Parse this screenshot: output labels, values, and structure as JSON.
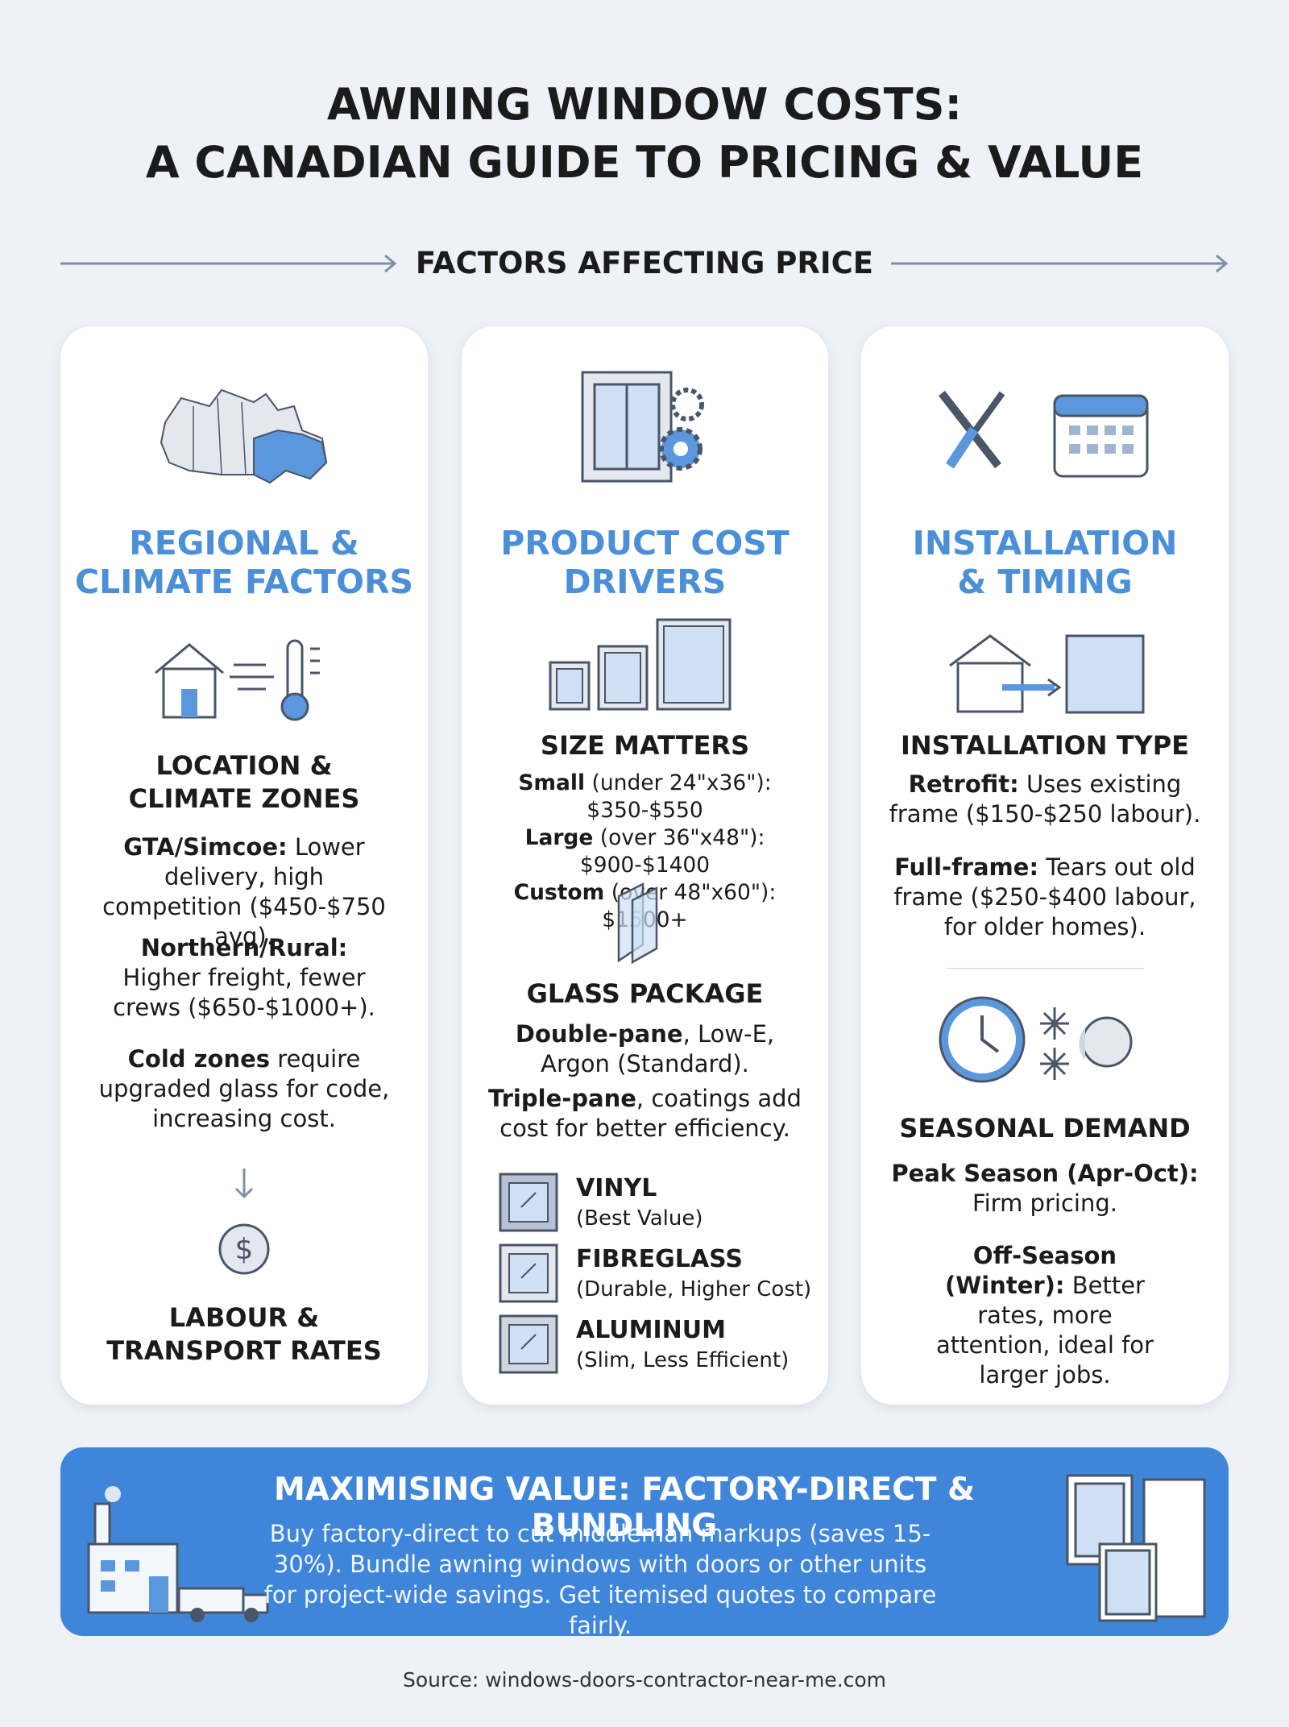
{
  "header": {
    "title_lines": [
      "AWNING WINDOW COSTS:",
      "A CANADIAN GUIDE TO PRICING & VALUE"
    ],
    "subtitle": "FACTORS AFFECTING PRICE"
  },
  "regional": {
    "heading_lines": [
      "REGIONAL &",
      "CLIMATE FACTORS"
    ],
    "location": {
      "heading_lines": [
        "LOCATION &",
        "CLIMATE ZONES"
      ],
      "items": [
        {
          "lead": "GTA/Simcoe:",
          "text": "Lower delivery, high competition ($450-$750 avg)."
        },
        {
          "lead": "Northern/Rural:",
          "text": "Higher freight, fewer crews ($650-$1000+)."
        },
        {
          "lead": "Cold zones",
          "text": "require upgraded glass for code, increasing cost."
        }
      ]
    },
    "labour_lines": [
      "LABOUR &",
      "TRANSPORT RATES"
    ]
  },
  "product": {
    "heading_lines": [
      "PRODUCT COST",
      "DRIVERS"
    ],
    "size": {
      "heading": "SIZE MATTERS",
      "items": [
        {
          "lead": "Small",
          "text": "(under 24\"x36\"): $350-$550"
        },
        {
          "lead": "Large",
          "text": "(over 36\"x48\"): $900-$1400"
        },
        {
          "lead": "Custom",
          "text": "(over 48\"x60\"): $1500+"
        }
      ]
    },
    "glass": {
      "heading": "GLASS PACKAGE",
      "items": [
        {
          "lead": "Double-pane",
          "text": ", Low-E, Argon (Standard)."
        },
        {
          "lead": "Triple-pane",
          "text": ", coatings add cost for better efficiency."
        }
      ]
    },
    "materials": [
      {
        "name": "VINYL",
        "note": "(Best Value)"
      },
      {
        "name": "FIBREGLASS",
        "note": "(Durable, Higher Cost)"
      },
      {
        "name": "ALUMINUM",
        "note": "(Slim, Less Efficient)"
      }
    ]
  },
  "installation": {
    "heading_lines": [
      "INSTALLATION",
      "& TIMING"
    ],
    "type": {
      "heading": "INSTALLATION TYPE",
      "items": [
        {
          "lead": "Retrofit:",
          "text": "Uses existing frame ($150-$250 labour)."
        },
        {
          "lead": "Full-frame:",
          "text": "Tears out old frame ($250-$400 labour, for older homes)."
        }
      ]
    },
    "seasonal": {
      "heading": "SEASONAL DEMAND",
      "items": [
        {
          "lead": "Peak Season (Apr-Oct):",
          "text": "Firm pricing."
        },
        {
          "lead": "Off-Season (Winter):",
          "text": "Better rates, more attention, ideal for larger jobs."
        }
      ]
    }
  },
  "banner": {
    "heading": "MAXIMISING VALUE: FACTORY-DIRECT & BUNDLING",
    "text": "Buy factory-direct to cut middleman markups (saves 15-30%). Bundle awning windows with doors or other units for project-wide savings. Get itemised quotes to compare fairly."
  },
  "source": {
    "label": "Source:",
    "url": "windows-doors-contractor-near-me.com"
  }
}
